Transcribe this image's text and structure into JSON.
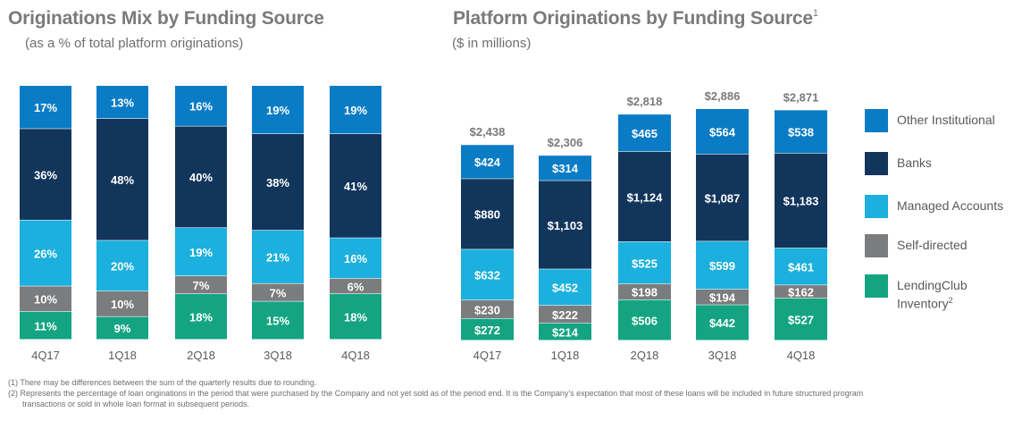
{
  "left_title": "Originations Mix by Funding Source",
  "left_subtitle": "(as a % of total platform originations)",
  "right_title": "Platform Originations by Funding Source",
  "right_title_sup": "1",
  "right_subtitle": "($ in millions)",
  "colors": {
    "other_institutional": "#0a7cc6",
    "banks": "#12355b",
    "managed_accounts": "#1bb0dd",
    "self_directed": "#7b7c7e",
    "lendingclub_inventory": "#14a482"
  },
  "legend": [
    {
      "key": "other_institutional",
      "label": "Other Institutional",
      "sup": ""
    },
    {
      "key": "banks",
      "label": "Banks",
      "sup": ""
    },
    {
      "key": "managed_accounts",
      "label": "Managed Accounts",
      "sup": ""
    },
    {
      "key": "self_directed",
      "label": "Self-directed",
      "sup": ""
    },
    {
      "key": "lendingclub_inventory",
      "label": "LendingClub Inventory",
      "sup": "2"
    }
  ],
  "footnotes": [
    "(1)  There may be differences between the sum of the quarterly results due to rounding.",
    "(2)  Represents the percentage of loan originations in the period that were purchased by the Company and not yet sold as of the period end. It is the Company's expectation that most of these loans will be included in future structured program",
    "transactions or sold in whole loan format in subsequent periods."
  ],
  "chart_data": [
    {
      "type": "bar",
      "stacked": true,
      "title": "Originations Mix by Funding Source",
      "subtitle": "(as a % of total platform originations)",
      "categories": [
        "4Q17",
        "1Q18",
        "2Q18",
        "3Q18",
        "4Q18"
      ],
      "unit": "%",
      "ylim": [
        0,
        100
      ],
      "series": [
        {
          "name": "LendingClub Inventory",
          "key": "lendingclub_inventory",
          "values": [
            11,
            9,
            18,
            15,
            18
          ],
          "labels": [
            "11%",
            "9%",
            "18%",
            "15%",
            "18%"
          ]
        },
        {
          "name": "Self-directed",
          "key": "self_directed",
          "values": [
            10,
            10,
            7,
            7,
            6
          ],
          "labels": [
            "10%",
            "10%",
            "7%",
            "7%",
            "6%"
          ]
        },
        {
          "name": "Managed Accounts",
          "key": "managed_accounts",
          "values": [
            26,
            20,
            19,
            21,
            16
          ],
          "labels": [
            "26%",
            "20%",
            "19%",
            "21%",
            "16%"
          ]
        },
        {
          "name": "Banks",
          "key": "banks",
          "values": [
            36,
            48,
            40,
            38,
            41
          ],
          "labels": [
            "36%",
            "48%",
            "40%",
            "38%",
            "41%"
          ]
        },
        {
          "name": "Other Institutional",
          "key": "other_institutional",
          "values": [
            17,
            13,
            16,
            19,
            19
          ],
          "labels": [
            "17%",
            "13%",
            "16%",
            "19%",
            "19%"
          ]
        }
      ]
    },
    {
      "type": "bar",
      "stacked": true,
      "title": "Platform Originations by Funding Source",
      "subtitle": "($ in millions)",
      "categories": [
        "4Q17",
        "1Q18",
        "2Q18",
        "3Q18",
        "4Q18"
      ],
      "unit": "$ in millions",
      "totals": [
        2438,
        2306,
        2818,
        2886,
        2871
      ],
      "total_labels": [
        "$2,438",
        "$2,306",
        "$2,818",
        "$2,886",
        "$2,871"
      ],
      "ylim": [
        0,
        3000
      ],
      "series": [
        {
          "name": "LendingClub Inventory",
          "key": "lendingclub_inventory",
          "values": [
            272,
            214,
            506,
            442,
            527
          ],
          "labels": [
            "$272",
            "$214",
            "$506",
            "$442",
            "$527"
          ]
        },
        {
          "name": "Self-directed",
          "key": "self_directed",
          "values": [
            230,
            222,
            198,
            194,
            162
          ],
          "labels": [
            "$230",
            "$222",
            "$198",
            "$194",
            "$162"
          ]
        },
        {
          "name": "Managed Accounts",
          "key": "managed_accounts",
          "values": [
            632,
            452,
            525,
            599,
            461
          ],
          "labels": [
            "$632",
            "$452",
            "$525",
            "$599",
            "$461"
          ]
        },
        {
          "name": "Banks",
          "key": "banks",
          "values": [
            880,
            1103,
            1124,
            1087,
            1183
          ],
          "labels": [
            "$880",
            "$1,103",
            "$1,124",
            "$1,087",
            "$1,183"
          ]
        },
        {
          "name": "Other Institutional",
          "key": "other_institutional",
          "values": [
            424,
            314,
            465,
            564,
            538
          ],
          "labels": [
            "$424",
            "$314",
            "$465",
            "$564",
            "$538"
          ]
        }
      ]
    }
  ]
}
